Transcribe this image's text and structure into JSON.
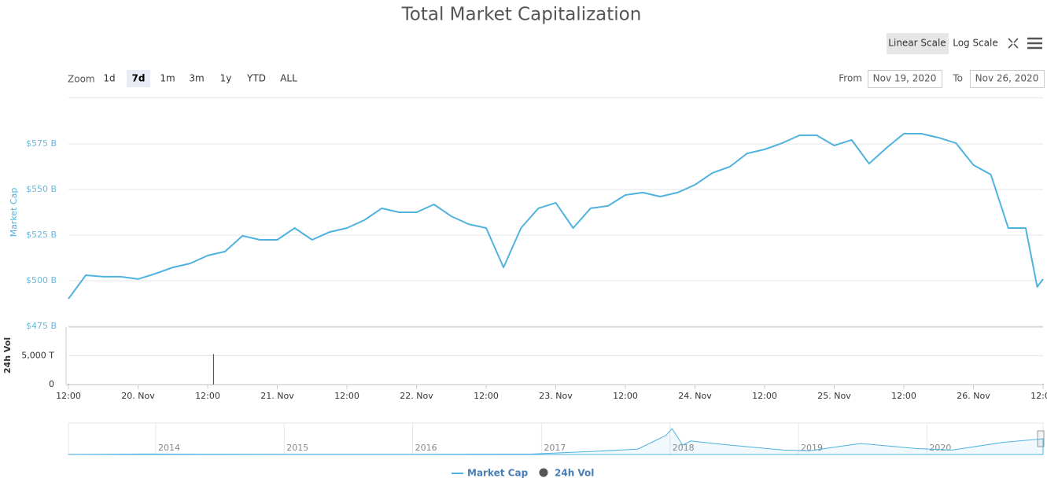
{
  "toolbar": {
    "linear": "Linear Scale",
    "log": "Log Scale",
    "zoom": "Zoom",
    "buttons": [
      "1d",
      "7d",
      "1m",
      "3m",
      "1y",
      "YTD",
      "ALL"
    ],
    "active": "7d",
    "from_label": "From",
    "from": "Nov 19, 2020",
    "to_label": "To",
    "to": "Nov 26, 2020"
  },
  "chart_data": [
    {
      "type": "line",
      "title": "Total Market Capitalization",
      "ylabel": "Market Cap",
      "x": [
        "2020-11-19T12:00",
        "2020-11-19T15:00",
        "2020-11-19T18:00",
        "2020-11-19T21:00",
        "2020-11-20T00:00",
        "2020-11-20T03:00",
        "2020-11-20T06:00",
        "2020-11-20T09:00",
        "2020-11-20T12:00",
        "2020-11-20T15:00",
        "2020-11-20T18:00",
        "2020-11-20T21:00",
        "2020-11-21T00:00",
        "2020-11-21T03:00",
        "2020-11-21T06:00",
        "2020-11-21T09:00",
        "2020-11-21T12:00",
        "2020-11-21T15:00",
        "2020-11-21T18:00",
        "2020-11-21T21:00",
        "2020-11-22T00:00",
        "2020-11-22T03:00",
        "2020-11-22T06:00",
        "2020-11-22T09:00",
        "2020-11-22T12:00",
        "2020-11-22T15:00",
        "2020-11-22T18:00",
        "2020-11-22T21:00",
        "2020-11-23T00:00",
        "2020-11-23T03:00",
        "2020-11-23T06:00",
        "2020-11-23T09:00",
        "2020-11-23T12:00",
        "2020-11-23T15:00",
        "2020-11-23T18:00",
        "2020-11-23T21:00",
        "2020-11-24T00:00",
        "2020-11-24T03:00",
        "2020-11-24T06:00",
        "2020-11-24T09:00",
        "2020-11-24T12:00",
        "2020-11-24T15:00",
        "2020-11-24T18:00",
        "2020-11-24T21:00",
        "2020-11-25T00:00",
        "2020-11-25T03:00",
        "2020-11-25T06:00",
        "2020-11-25T09:00",
        "2020-11-25T12:00",
        "2020-11-25T15:00",
        "2020-11-25T18:00",
        "2020-11-25T21:00",
        "2020-11-26T00:00",
        "2020-11-26T03:00",
        "2020-11-26T06:00",
        "2020-11-26T09:00",
        "2020-11-26T11:00",
        "2020-11-26T12:00"
      ],
      "series": [
        {
          "name": "Market Cap",
          "color": "#4fb2df",
          "values": [
            490.1,
            503.0,
            502.2,
            502.2,
            500.9,
            503.9,
            507.3,
            509.5,
            513.8,
            516.0,
            524.6,
            522.4,
            522.4,
            528.9,
            522.4,
            526.7,
            528.9,
            533.2,
            539.7,
            537.5,
            537.5,
            541.8,
            535.3,
            531.0,
            528.9,
            507.3,
            528.9,
            539.7,
            542.7,
            528.9,
            539.7,
            541.0,
            547.0,
            548.3,
            546.1,
            548.3,
            552.6,
            559.1,
            562.5,
            569.8,
            572.0,
            575.4,
            579.7,
            579.7,
            574.1,
            577.2,
            564.2,
            572.8,
            580.6,
            580.6,
            578.4,
            575.4,
            563.4,
            558.2,
            528.9,
            528.9,
            496.6,
            500.9
          ]
        }
      ],
      "xlim": [
        "2020-11-19T12:00",
        "2020-11-26T12:00"
      ],
      "xticks": [
        {
          "value": "2020-11-19T12:00",
          "label": "12:00"
        },
        {
          "value": "2020-11-20T00:00",
          "label": "20. Nov"
        },
        {
          "value": "2020-11-20T12:00",
          "label": "12:00"
        },
        {
          "value": "2020-11-21T00:00",
          "label": "21. Nov"
        },
        {
          "value": "2020-11-21T12:00",
          "label": "12:00"
        },
        {
          "value": "2020-11-22T00:00",
          "label": "22. Nov"
        },
        {
          "value": "2020-11-22T12:00",
          "label": "12:00"
        },
        {
          "value": "2020-11-23T00:00",
          "label": "23. Nov"
        },
        {
          "value": "2020-11-23T12:00",
          "label": "12:00"
        },
        {
          "value": "2020-11-24T00:00",
          "label": "24. Nov"
        },
        {
          "value": "2020-11-24T12:00",
          "label": "12:00"
        },
        {
          "value": "2020-11-25T00:00",
          "label": "25. Nov"
        },
        {
          "value": "2020-11-25T12:00",
          "label": "12:00"
        },
        {
          "value": "2020-11-26T00:00",
          "label": "26. Nov"
        },
        {
          "value": "2020-11-26T12:00",
          "label": "12:00"
        }
      ],
      "ylim": [
        475,
        600
      ],
      "yticks": [
        {
          "value": 475,
          "label": "$475 B"
        },
        {
          "value": 500,
          "label": "$500 B"
        },
        {
          "value": 525,
          "label": "$525 B"
        },
        {
          "value": 550,
          "label": "$550 B"
        },
        {
          "value": 575,
          "label": "$575 B"
        }
      ],
      "grid": true
    },
    {
      "type": "bar",
      "ylabel": "24h Vol",
      "x": [
        "2020-11-19T12:00",
        "2020-11-20T13:00",
        "2020-11-26T12:00"
      ],
      "series": [
        {
          "name": "24h Vol",
          "color": "#555555",
          "values": [
            90,
            5300,
            95
          ]
        }
      ],
      "ylim": [
        0,
        10000
      ],
      "yticks": [
        0,
        {
          "value": 5000,
          "label": "5,000 T"
        }
      ],
      "grid": true
    },
    {
      "type": "area",
      "x": [
        "2013-04-28",
        "2013-12-01",
        "2014-06-01",
        "2015-01-15",
        "2016-01-01",
        "2016-12-01",
        "2017-06-01",
        "2017-10-01",
        "2017-12-20",
        "2018-01-07",
        "2018-02-06",
        "2018-03-01",
        "2018-06-01",
        "2018-11-20",
        "2019-02-01",
        "2019-06-26",
        "2019-12-01",
        "2020-03-12",
        "2020-08-01",
        "2020-11-26"
      ],
      "series": [
        {
          "name": "Market Cap",
          "color": "#4fb2df",
          "values": [
            1.5,
            15,
            9,
            5,
            7,
            12,
            100,
            170,
            600,
            820,
            300,
            430,
            320,
            140,
            120,
            350,
            190,
            140,
            380,
            500
          ]
        }
      ],
      "xlim": [
        "2013-04-28",
        "2020-11-26"
      ],
      "ylim": [
        0,
        1000
      ],
      "xticks": [
        {
          "value": "2014-01-01",
          "label": "2014"
        },
        {
          "value": "2015-01-01",
          "label": "2015"
        },
        {
          "value": "2016-01-01",
          "label": "2016"
        },
        {
          "value": "2017-01-01",
          "label": "2017"
        },
        {
          "value": "2018-01-01",
          "label": "2018"
        },
        {
          "value": "2019-01-01",
          "label": "2019"
        },
        {
          "value": "2020-01-01",
          "label": "2020"
        }
      ]
    }
  ]
}
